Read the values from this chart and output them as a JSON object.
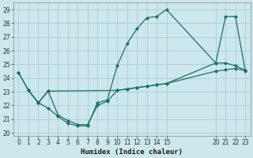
{
  "xlabel": "Humidex (Indice chaleur)",
  "bg_color": "#cce8ec",
  "grid_color": "#aacdd4",
  "line_color": "#1a6e6a",
  "ylim": [
    19.8,
    29.5
  ],
  "xlim": [
    -0.5,
    23.5
  ],
  "yticks": [
    20,
    21,
    22,
    23,
    24,
    25,
    26,
    27,
    28,
    29
  ],
  "xticks": [
    0,
    1,
    2,
    3,
    4,
    5,
    6,
    7,
    8,
    9,
    10,
    11,
    12,
    13,
    14,
    15,
    20,
    21,
    22,
    23
  ],
  "line1_x": [
    0,
    1,
    2,
    3,
    4,
    5,
    6,
    7,
    8,
    9,
    10,
    11,
    12,
    13,
    14,
    15,
    20,
    21,
    22,
    23
  ],
  "line1_y": [
    24.4,
    23.1,
    22.2,
    21.8,
    21.2,
    20.7,
    20.5,
    20.5,
    22.2,
    22.4,
    24.9,
    26.5,
    27.6,
    28.4,
    28.5,
    29.0,
    25.1,
    25.1,
    24.9,
    24.55
  ],
  "line2_x": [
    0,
    1,
    2,
    3,
    10,
    11,
    12,
    13,
    14,
    15,
    20,
    21,
    22,
    23
  ],
  "line2_y": [
    24.4,
    23.1,
    22.2,
    23.05,
    23.1,
    23.2,
    23.3,
    23.4,
    23.5,
    23.6,
    25.1,
    28.5,
    28.5,
    24.5
  ],
  "line3_x": [
    1,
    2,
    3,
    4,
    5,
    6,
    7,
    8,
    9,
    10,
    11,
    12,
    13,
    14,
    15,
    20,
    21,
    22,
    23
  ],
  "line3_y": [
    23.1,
    22.2,
    23.05,
    21.3,
    20.9,
    20.6,
    20.6,
    22.0,
    22.3,
    23.1,
    23.2,
    23.3,
    23.4,
    23.5,
    23.6,
    24.5,
    24.6,
    24.7,
    24.55
  ]
}
